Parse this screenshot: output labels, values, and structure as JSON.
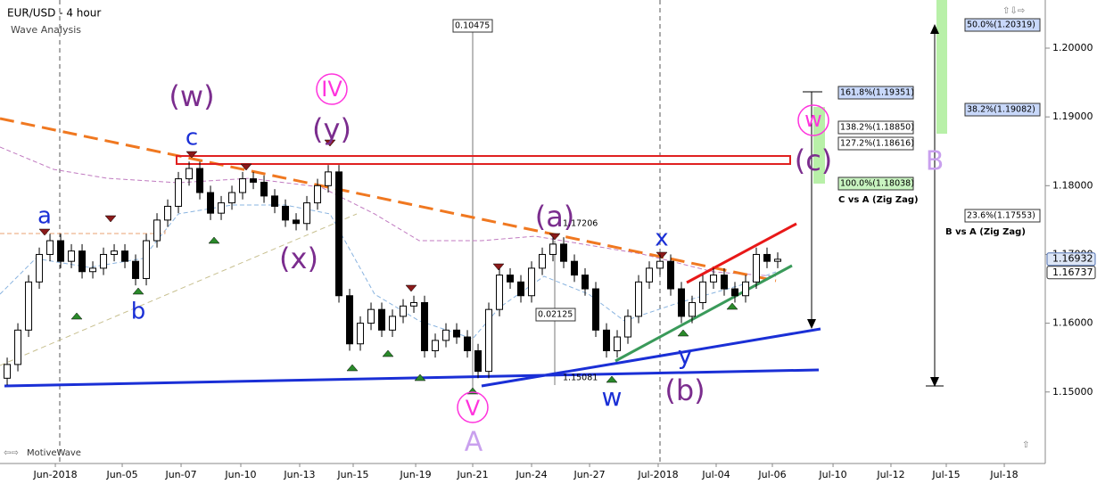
{
  "chart_data": {
    "type": "candlestick",
    "title": "EUR/USD - 4 hour",
    "subtitle": "Wave Analysis",
    "footer": "MotiveWave",
    "open": [
      1.152,
      1.154,
      1.159,
      1.166,
      1.17,
      1.172,
      1.169,
      1.1705,
      1.1675,
      1.168,
      1.17,
      1.1705,
      1.169,
      1.1665,
      1.172,
      1.175,
      1.177,
      1.181,
      1.1825,
      1.179,
      1.176,
      1.1775,
      1.179,
      1.181,
      1.1805,
      1.1785,
      1.177,
      1.175,
      1.1745,
      1.1775,
      1.18,
      1.182,
      1.164,
      1.157,
      1.16,
      1.162,
      1.159,
      1.161,
      1.1625,
      1.163,
      1.156,
      1.1575,
      1.159,
      1.158,
      1.156,
      1.153,
      1.162,
      1.167,
      1.166,
      1.164,
      1.168,
      1.17,
      1.1715,
      1.169,
      1.167,
      1.165,
      1.159,
      1.156,
      1.158,
      1.161,
      1.166,
      1.168,
      1.169,
      1.165,
      1.161,
      1.163,
      1.166,
      1.167,
      1.165,
      1.164,
      1.166,
      1.17,
      1.169
    ],
    "high": [
      1.155,
      1.16,
      1.167,
      1.171,
      1.173,
      1.173,
      1.1715,
      1.1715,
      1.169,
      1.171,
      1.1715,
      1.1715,
      1.17,
      1.173,
      1.176,
      1.178,
      1.182,
      1.1835,
      1.1835,
      1.18,
      1.1785,
      1.18,
      1.182,
      1.182,
      1.1815,
      1.1795,
      1.178,
      1.176,
      1.1785,
      1.181,
      1.183,
      1.183,
      1.165,
      1.161,
      1.163,
      1.163,
      1.162,
      1.1635,
      1.164,
      1.164,
      1.1585,
      1.16,
      1.16,
      1.159,
      1.157,
      1.163,
      1.168,
      1.168,
      1.167,
      1.169,
      1.171,
      1.1725,
      1.1725,
      1.17,
      1.168,
      1.166,
      1.16,
      1.159,
      1.162,
      1.167,
      1.169,
      1.17,
      1.17,
      1.166,
      1.164,
      1.167,
      1.168,
      1.168,
      1.166,
      1.167,
      1.171,
      1.171,
      1.1703
    ],
    "low": [
      1.151,
      1.153,
      1.158,
      1.165,
      1.169,
      1.168,
      1.168,
      1.1665,
      1.1665,
      1.167,
      1.169,
      1.168,
      1.1655,
      1.1655,
      1.171,
      1.174,
      1.176,
      1.18,
      1.178,
      1.175,
      1.175,
      1.1765,
      1.178,
      1.1795,
      1.1775,
      1.176,
      1.174,
      1.1735,
      1.1735,
      1.1765,
      1.179,
      1.163,
      1.156,
      1.156,
      1.159,
      1.158,
      1.158,
      1.16,
      1.1615,
      1.155,
      1.155,
      1.1565,
      1.157,
      1.155,
      1.152,
      1.152,
      1.161,
      1.165,
      1.163,
      1.163,
      1.167,
      1.169,
      1.168,
      1.166,
      1.164,
      1.158,
      1.155,
      1.155,
      1.157,
      1.16,
      1.165,
      1.167,
      1.164,
      1.16,
      1.16,
      1.162,
      1.165,
      1.164,
      1.163,
      1.163,
      1.165,
      1.168,
      1.168
    ],
    "close": [
      1.154,
      1.159,
      1.166,
      1.17,
      1.172,
      1.169,
      1.1705,
      1.1675,
      1.168,
      1.17,
      1.1705,
      1.169,
      1.1665,
      1.172,
      1.175,
      1.177,
      1.181,
      1.1825,
      1.179,
      1.176,
      1.1775,
      1.179,
      1.181,
      1.1805,
      1.1785,
      1.177,
      1.175,
      1.1745,
      1.1775,
      1.18,
      1.182,
      1.164,
      1.157,
      1.16,
      1.162,
      1.159,
      1.161,
      1.1625,
      1.163,
      1.156,
      1.1575,
      1.159,
      1.158,
      1.156,
      1.153,
      1.162,
      1.167,
      1.166,
      1.164,
      1.168,
      1.17,
      1.1715,
      1.169,
      1.167,
      1.165,
      1.159,
      1.156,
      1.158,
      1.161,
      1.166,
      1.168,
      1.169,
      1.165,
      1.161,
      1.163,
      1.166,
      1.167,
      1.165,
      1.164,
      1.166,
      1.17,
      1.169,
      1.1693
    ],
    "up_color": "#ffffff",
    "down_color": "#000000",
    "xlim": [
      -0.67,
      97
    ],
    "xticks": [
      {
        "value": 4.5,
        "label": "Jun-2018"
      },
      {
        "value": 10.75,
        "label": "Jun-05"
      },
      {
        "value": 16.25,
        "label": "Jun-07"
      },
      {
        "value": 21.83,
        "label": "Jun-10"
      },
      {
        "value": 27.33,
        "label": "Jun-13"
      },
      {
        "value": 32.33,
        "label": "Jun-15"
      },
      {
        "value": 38.17,
        "label": "Jun-19"
      },
      {
        "value": 43.5,
        "label": "Jun-21"
      },
      {
        "value": 49,
        "label": "Jun-24"
      },
      {
        "value": 54.42,
        "label": "Jun-27"
      },
      {
        "value": 60.83,
        "label": "Jul-2018"
      },
      {
        "value": 66.25,
        "label": "Jul-04"
      },
      {
        "value": 71.5,
        "label": "Jul-06"
      },
      {
        "value": 77.17,
        "label": "Jul-10"
      },
      {
        "value": 82.58,
        "label": "Jul-12"
      },
      {
        "value": 87.75,
        "label": "Jul-15"
      },
      {
        "value": 93.17,
        "label": "Jul-18"
      }
    ],
    "ylim": [
      1.1396,
      1.207
    ],
    "yticks": [
      {
        "value": 1.15,
        "label": "1.15000"
      },
      {
        "value": 1.16,
        "label": "1.16000"
      },
      {
        "value": 1.17,
        "label": "1.17000"
      },
      {
        "value": 1.18,
        "label": "1.18000"
      },
      {
        "value": 1.19,
        "label": "1.19000"
      },
      {
        "value": 1.2,
        "label": "1.20000"
      }
    ],
    "price_labels": [
      {
        "value": 1.16932,
        "label": "1.16932"
      },
      {
        "value": 1.16737,
        "label": "1.16737"
      }
    ],
    "annotations": [
      {
        "text": "(w)",
        "color": "#7b2d8e"
      },
      {
        "text": "c",
        "color": "#1a2fd6"
      },
      {
        "text": "a",
        "color": "#1a2fd6"
      },
      {
        "text": "b",
        "color": "#1a2fd6"
      },
      {
        "text": "(x)",
        "color": "#7b2d8e"
      },
      {
        "text": "(y)",
        "color": "#7b2d8e"
      },
      {
        "text": "IV",
        "color": "#ff33dd"
      },
      {
        "text": "(a)",
        "color": "#7b2d8e"
      },
      {
        "text": "x",
        "color": "#1a2fd6"
      },
      {
        "text": "w",
        "color": "#1a2fd6"
      },
      {
        "text": "y",
        "color": "#1a2fd6"
      },
      {
        "text": "(b)",
        "color": "#7b2d8e"
      },
      {
        "text": "(c)",
        "color": "#7b2d8e"
      },
      {
        "text": "V",
        "color": "#ff33dd"
      },
      {
        "text": "A",
        "color": "#c9a0ee"
      },
      {
        "text": "B",
        "color": "#c9a0ee"
      },
      {
        "text": "w",
        "color": "#ff33dd"
      }
    ],
    "fib_labels": [
      {
        "text": "161.8%(1.19351)",
        "color": "#c8d8fa"
      },
      {
        "text": "138.2%(1.18850)",
        "color": "#ffffff"
      },
      {
        "text": "127.2%(1.18616)",
        "color": "#ffffff"
      },
      {
        "text": "100.0%(1.18038)",
        "color": "#c8f4c0"
      },
      {
        "text": "C vs A (Zig Zag)",
        "color": "none"
      },
      {
        "text": "50.0%(1.20319)",
        "color": "#c8d8fa"
      },
      {
        "text": "38.2%(1.19082)",
        "color": "#c8d8fa"
      },
      {
        "text": "23.6%(1.17553)",
        "color": "#ffffff"
      },
      {
        "text": "B vs A (Zig Zag)",
        "color": "none"
      },
      {
        "text": "0.10475",
        "color": "#ffffff"
      },
      {
        "text": "1.17206",
        "color": "none"
      },
      {
        "text": "0.02125",
        "color": "#ffffff"
      },
      {
        "text": "1.15081",
        "color": "none"
      }
    ]
  }
}
